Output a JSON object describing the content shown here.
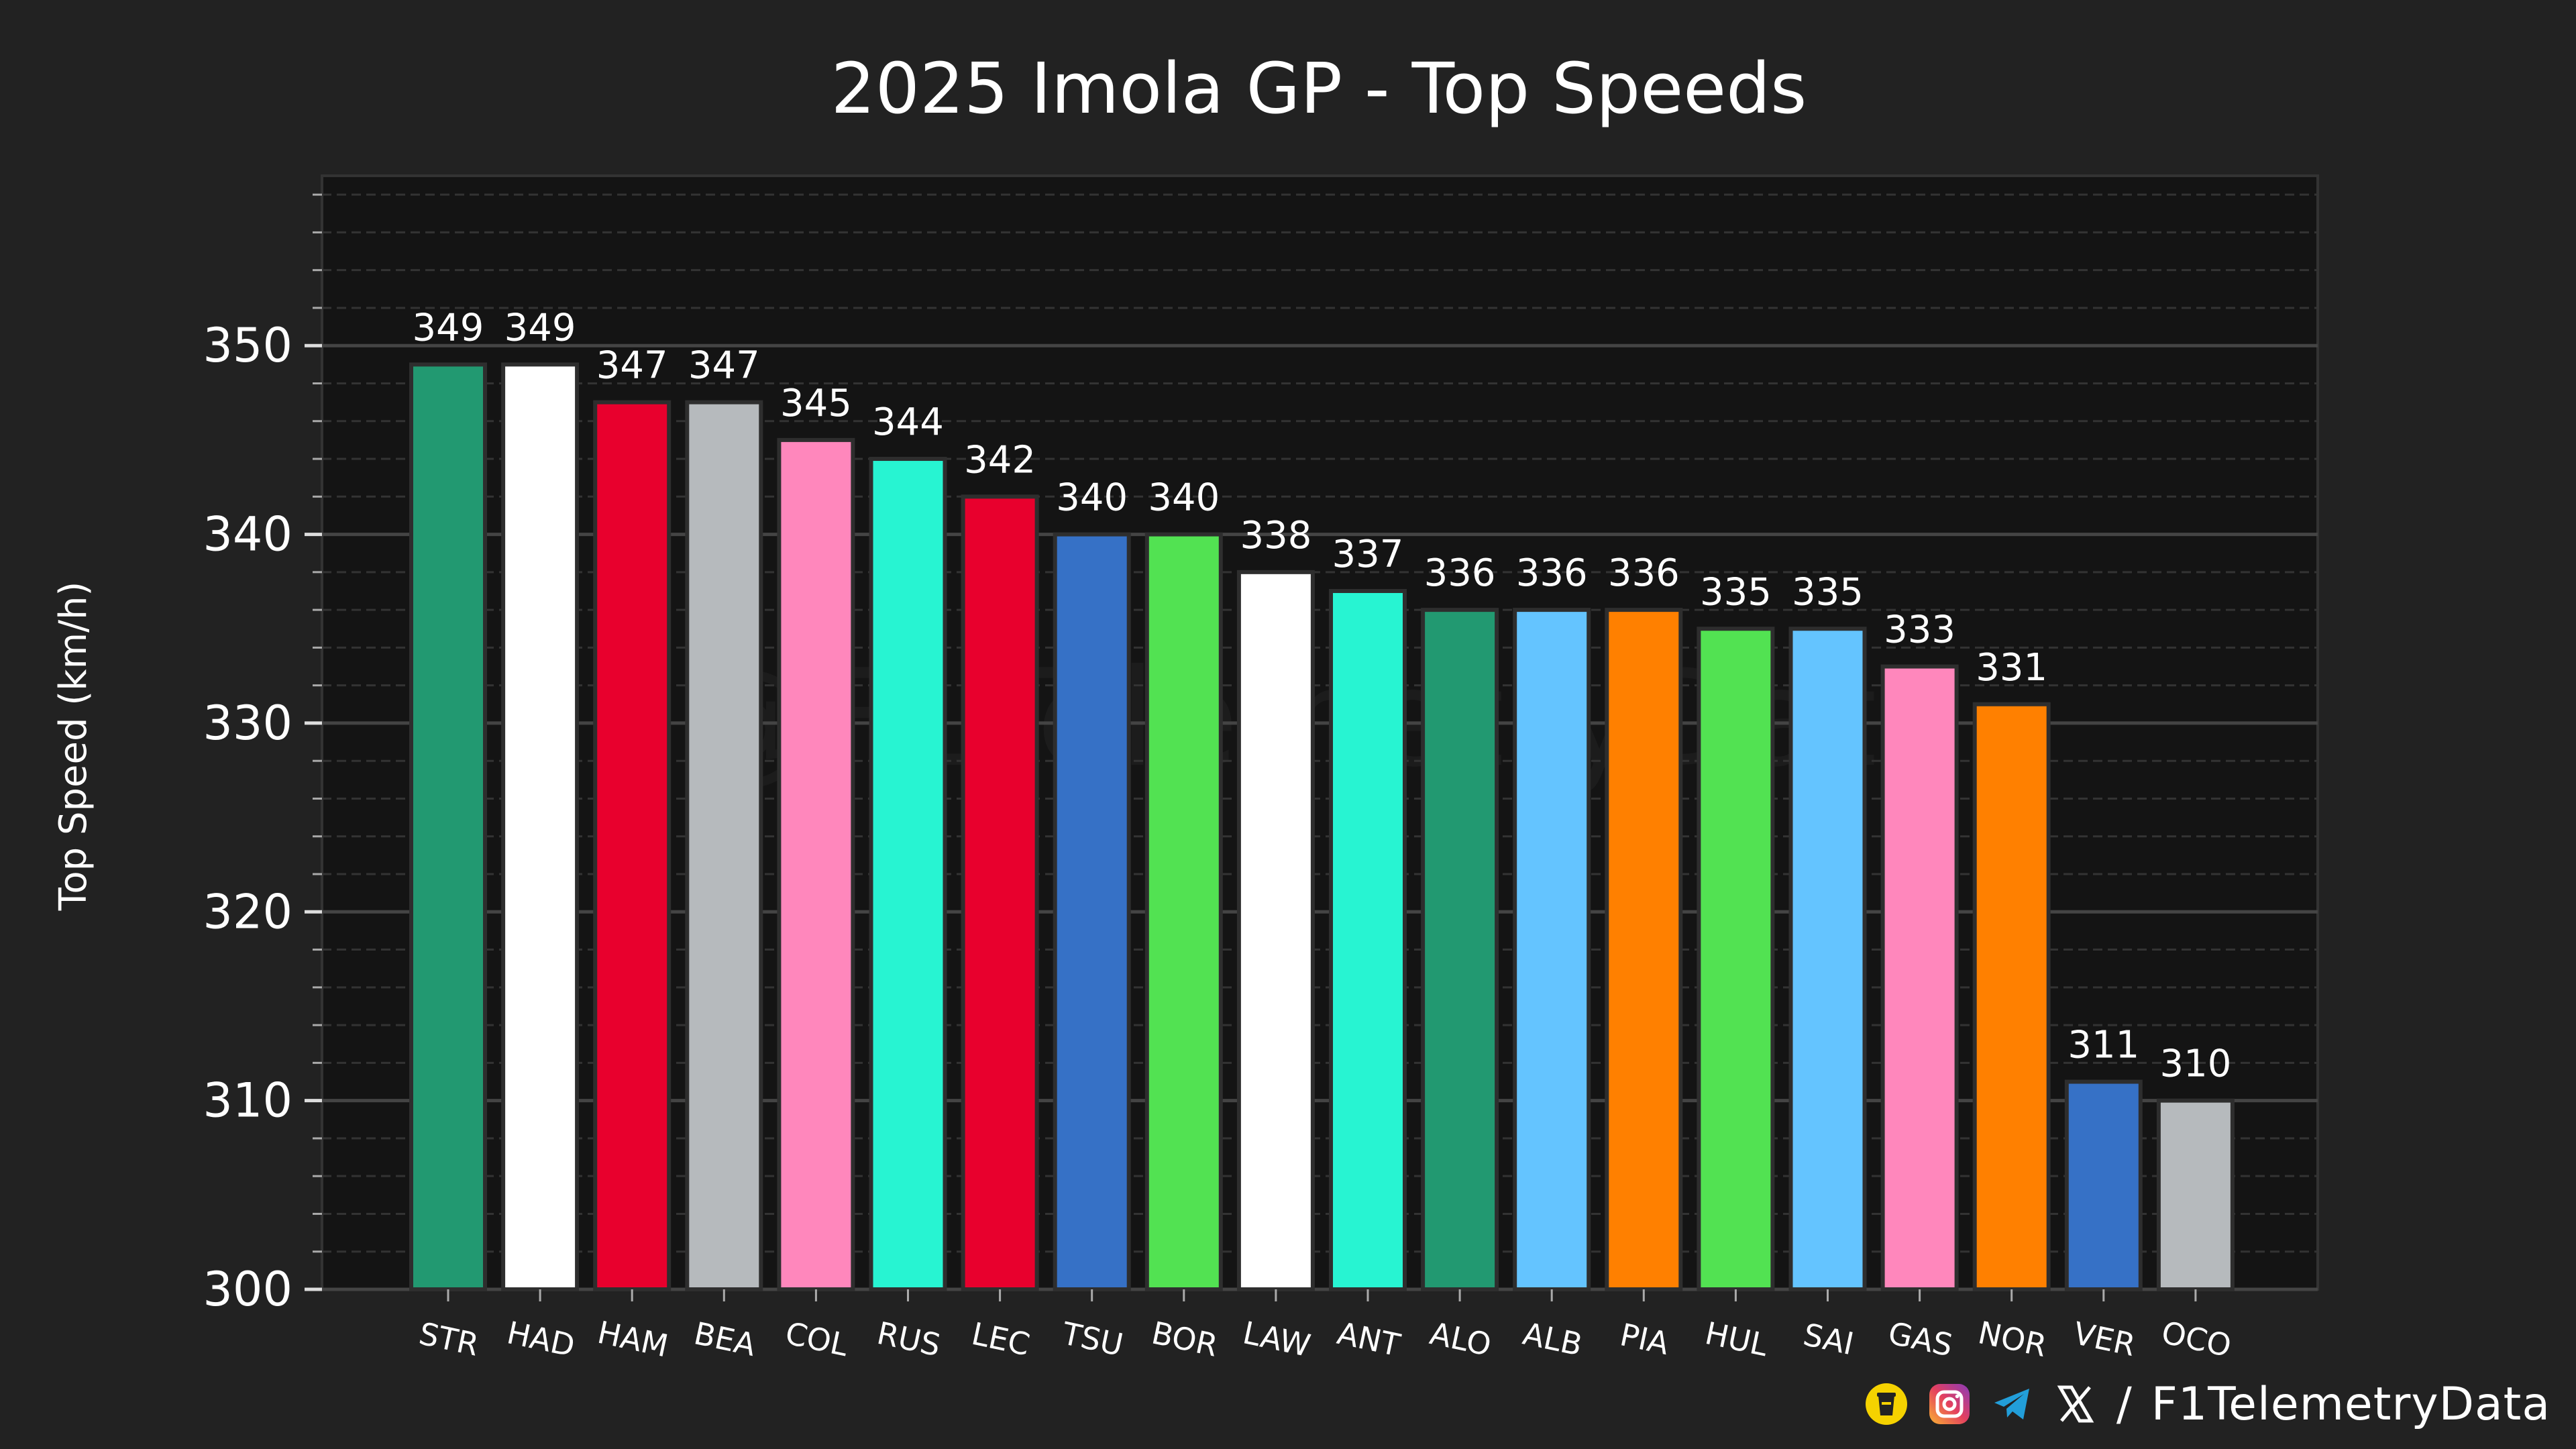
{
  "chart_data": {
    "type": "bar",
    "title": "2025 Imola GP - Top Speeds",
    "xlabel": "",
    "ylabel": "Top Speed (km/h)",
    "ylim": [
      300,
      359
    ],
    "yticks": [
      300,
      310,
      320,
      330,
      340,
      350
    ],
    "grid": true,
    "categories": [
      "STR",
      "HAD",
      "HAM",
      "BEA",
      "COL",
      "RUS",
      "LEC",
      "TSU",
      "BOR",
      "LAW",
      "ANT",
      "ALO",
      "ALB",
      "PIA",
      "HUL",
      "SAI",
      "GAS",
      "NOR",
      "VER",
      "OCO"
    ],
    "values": [
      349,
      349,
      347,
      347,
      345,
      344,
      342,
      340,
      340,
      338,
      337,
      336,
      336,
      336,
      335,
      335,
      333,
      331,
      311,
      310
    ],
    "colors": [
      "#229971",
      "#ffffff",
      "#e8002d",
      "#b6babd",
      "#ff87bc",
      "#27f4d2",
      "#e8002d",
      "#3671c6",
      "#52e252",
      "#ffffff",
      "#27f4d2",
      "#229971",
      "#64c4ff",
      "#ff8000",
      "#52e252",
      "#64c4ff",
      "#ff87bc",
      "#ff8000",
      "#3671c6",
      "#b6babd"
    ],
    "watermark": "@F1TelemetryData"
  },
  "footer": {
    "separator": "/",
    "handle": "F1TelemetryData",
    "icons": [
      "tip-jar-icon",
      "instagram-icon",
      "telegram-icon",
      "x-icon"
    ]
  },
  "theme": {
    "background": "#222222",
    "plot_background": "#141414",
    "grid_major": "#444444",
    "grid_minor": "#333333",
    "bar_edge": "#2e2e2e"
  }
}
